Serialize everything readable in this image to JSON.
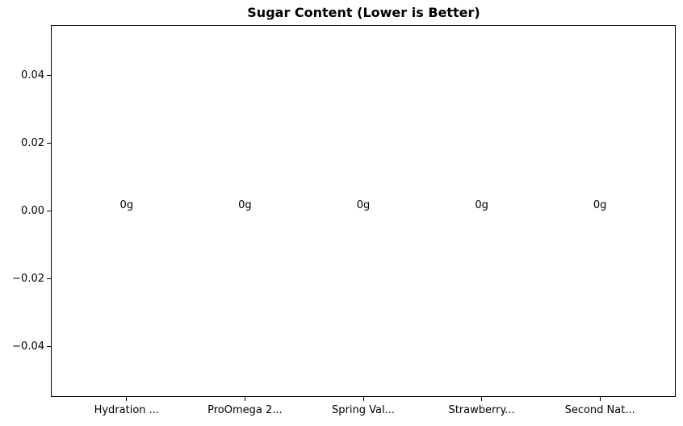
{
  "chart_data": {
    "type": "bar",
    "title": "Sugar Content (Lower is Better)",
    "categories": [
      "Hydration ...",
      "ProOmega 2...",
      "Spring Val...",
      "Strawberry...",
      "Second Nat..."
    ],
    "values": [
      0,
      0,
      0,
      0,
      0
    ],
    "bar_labels": [
      "0g",
      "0g",
      "0g",
      "0g",
      "0g"
    ],
    "xlabel": "",
    "ylabel": "",
    "yticks": [
      0.04,
      0.02,
      0.0,
      -0.02,
      -0.04
    ],
    "ytick_labels": [
      "0.04",
      "0.02",
      "0.00",
      "−0.02",
      "−0.04"
    ],
    "ylim": [
      -0.055,
      0.055
    ],
    "xlim": [
      -0.64,
      4.64
    ],
    "bar_width": 0.8,
    "grid": false,
    "legend": null,
    "axis_color": "#000000",
    "background_color": "#ffffff"
  }
}
